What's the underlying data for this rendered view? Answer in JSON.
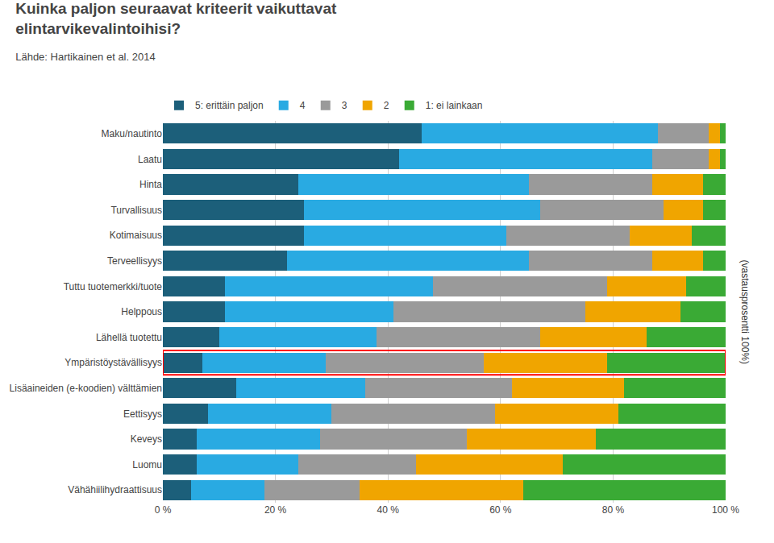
{
  "chart_data": {
    "type": "bar",
    "orientation": "horizontal",
    "stacked": true,
    "title": "Kuinka paljon seuraavat kriteerit vaikuttavat\nelintarvikevalintoihisi?",
    "subtitle": "Lähde: Hartikainen et al. 2014",
    "annotations": [
      {
        "text": "(vastausprosentti 100%)"
      }
    ],
    "categories": [
      "Maku/nautinto",
      "Laatu",
      "Hinta",
      "Turvallisuus",
      "Kotimaisuus",
      "Terveellisyys",
      "Tuttu tuotemerkki/tuote",
      "Helppous",
      "Lähellä tuotettu",
      "Ympäristöystävällisyys",
      "Lisäaineiden (e-koodien) välttämien",
      "Eettisyys",
      "Keveys",
      "Luomu",
      "Vähähiilihydraattisuus"
    ],
    "series": [
      {
        "name": "5: erittäin paljon",
        "color": "#1c5f7a",
        "values": [
          46,
          42,
          24,
          25,
          25,
          22,
          11,
          11,
          10,
          7,
          13,
          8,
          6,
          6,
          5
        ]
      },
      {
        "name": "4",
        "color": "#29aae2",
        "values": [
          42,
          45,
          41,
          42,
          36,
          43,
          37,
          30,
          28,
          22,
          23,
          22,
          22,
          18,
          13
        ]
      },
      {
        "name": "3",
        "color": "#9a9a9a",
        "values": [
          9,
          10,
          22,
          22,
          22,
          22,
          31,
          34,
          29,
          28,
          26,
          29,
          26,
          21,
          17
        ]
      },
      {
        "name": "2",
        "color": "#f0a500",
        "values": [
          2,
          2,
          9,
          7,
          11,
          9,
          14,
          17,
          19,
          22,
          20,
          22,
          23,
          26,
          29
        ]
      },
      {
        "name": "1: ei lainkaan",
        "color": "#3aaa35",
        "values": [
          1,
          1,
          4,
          4,
          6,
          4,
          7,
          8,
          14,
          21,
          18,
          19,
          23,
          29,
          36
        ]
      }
    ],
    "highlight": {
      "category": "Ympäristöystävällisyys",
      "color": "red"
    },
    "xlim": [
      0,
      100
    ],
    "xticks": [
      {
        "value": 0,
        "label": "0 %"
      },
      {
        "value": 20,
        "label": "20 %"
      },
      {
        "value": 40,
        "label": "40 %"
      },
      {
        "value": 60,
        "label": "60 %"
      },
      {
        "value": 80,
        "label": "80 %"
      },
      {
        "value": 100,
        "label": "100 %"
      }
    ],
    "grid": true,
    "legend": "top"
  }
}
